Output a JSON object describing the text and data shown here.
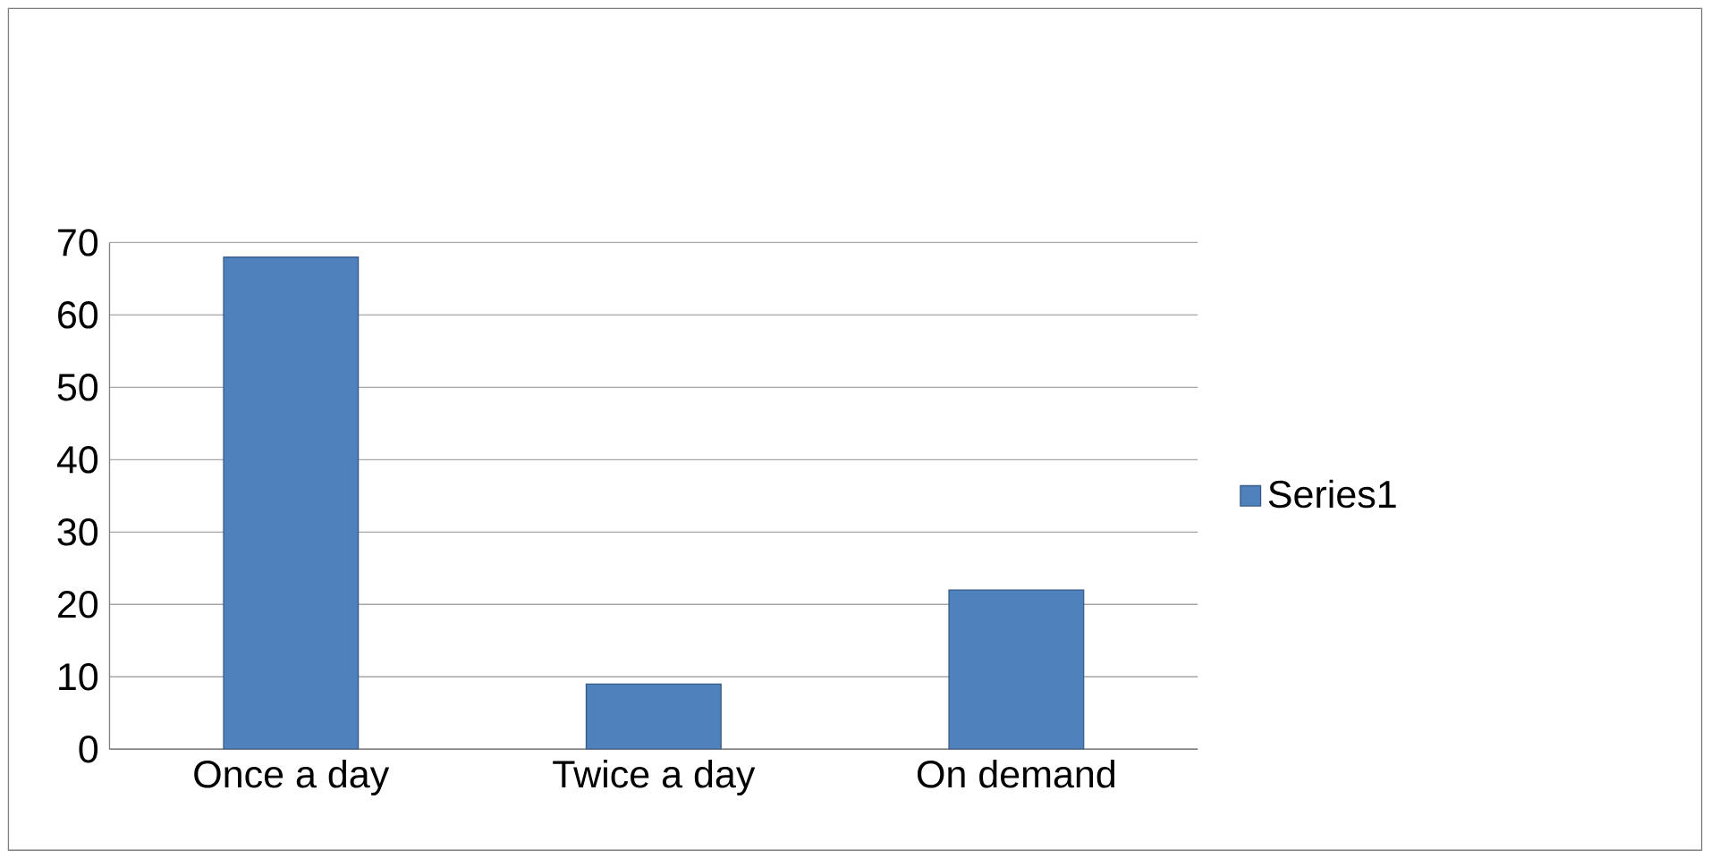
{
  "chart_data": {
    "type": "bar",
    "categories": [
      "Once a day",
      "Twice a day",
      "On demand"
    ],
    "series": [
      {
        "name": "Series1",
        "color": "#4f81bd",
        "values": [
          68,
          9,
          22
        ]
      }
    ],
    "ylim": [
      0,
      70
    ],
    "yticks": [
      0,
      10,
      20,
      30,
      40,
      50,
      60,
      70
    ],
    "grid": "y",
    "legend": "right"
  }
}
